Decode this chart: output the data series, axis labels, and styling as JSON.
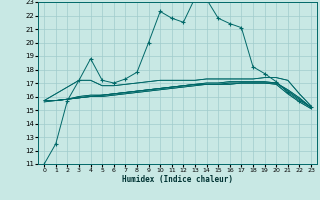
{
  "xlabel": "Humidex (Indice chaleur)",
  "xlim": [
    -0.5,
    23.5
  ],
  "ylim": [
    11,
    23
  ],
  "xticks": [
    0,
    1,
    2,
    3,
    4,
    5,
    6,
    7,
    8,
    9,
    10,
    11,
    12,
    13,
    14,
    15,
    16,
    17,
    18,
    19,
    20,
    21,
    22,
    23
  ],
  "yticks": [
    11,
    12,
    13,
    14,
    15,
    16,
    17,
    18,
    19,
    20,
    21,
    22,
    23
  ],
  "bg_color": "#c8e8e4",
  "grid_color": "#a0cccc",
  "line_color": "#006868",
  "line1_x": [
    0,
    1,
    2,
    3,
    4,
    5,
    6,
    7,
    8,
    9,
    10,
    11,
    12,
    13,
    14,
    15,
    16,
    17,
    18,
    19,
    20,
    21,
    22,
    23
  ],
  "line1_y": [
    11.0,
    12.5,
    15.7,
    17.2,
    18.8,
    17.2,
    17.0,
    17.3,
    17.8,
    20.0,
    22.3,
    21.8,
    21.5,
    23.3,
    23.2,
    21.8,
    21.4,
    21.1,
    18.2,
    17.7,
    17.1,
    16.3,
    15.7,
    15.2
  ],
  "line2_x": [
    0,
    3,
    4,
    5,
    6,
    7,
    8,
    9,
    10,
    11,
    12,
    13,
    14,
    15,
    16,
    17,
    18,
    19,
    20,
    21,
    22,
    23
  ],
  "line2_y": [
    15.7,
    17.2,
    17.2,
    16.8,
    16.8,
    16.9,
    17.0,
    17.1,
    17.2,
    17.2,
    17.2,
    17.2,
    17.3,
    17.3,
    17.3,
    17.3,
    17.3,
    17.4,
    17.4,
    17.2,
    16.2,
    15.3
  ],
  "line3_x": [
    0,
    1,
    2,
    3,
    4,
    5,
    6,
    7,
    8,
    9,
    10,
    11,
    12,
    13,
    14,
    15,
    16,
    17,
    18,
    19,
    20,
    21,
    22,
    23
  ],
  "line3_y": [
    15.7,
    15.7,
    15.8,
    16.0,
    16.1,
    16.1,
    16.2,
    16.3,
    16.4,
    16.5,
    16.6,
    16.7,
    16.8,
    16.9,
    16.9,
    16.9,
    16.9,
    17.0,
    17.0,
    17.0,
    17.0,
    16.5,
    15.9,
    15.2
  ],
  "line4_x": [
    0,
    1,
    2,
    3,
    4,
    5,
    6,
    7,
    8,
    9,
    10,
    11,
    12,
    13,
    14,
    15,
    16,
    17,
    18,
    19,
    20,
    21,
    22,
    23
  ],
  "line4_y": [
    15.7,
    15.7,
    15.8,
    15.9,
    16.0,
    16.1,
    16.2,
    16.3,
    16.4,
    16.5,
    16.6,
    16.7,
    16.8,
    16.9,
    17.0,
    17.0,
    17.1,
    17.1,
    17.1,
    17.1,
    17.0,
    16.4,
    15.8,
    15.2
  ],
  "line5_x": [
    0,
    1,
    2,
    3,
    4,
    5,
    6,
    7,
    8,
    9,
    10,
    11,
    12,
    13,
    14,
    15,
    16,
    17,
    18,
    19,
    20,
    21,
    22,
    23
  ],
  "line5_y": [
    15.6,
    15.7,
    15.8,
    15.9,
    16.0,
    16.0,
    16.1,
    16.2,
    16.3,
    16.4,
    16.5,
    16.6,
    16.7,
    16.8,
    16.9,
    16.9,
    17.0,
    17.0,
    17.0,
    17.0,
    16.9,
    16.2,
    15.6,
    15.1
  ]
}
